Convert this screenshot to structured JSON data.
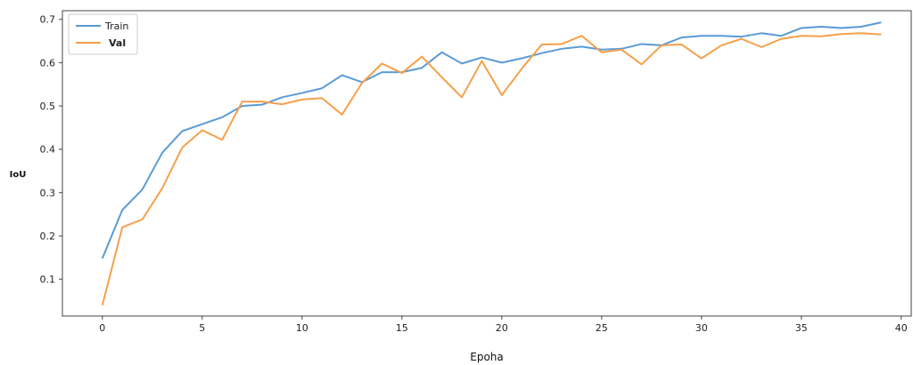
{
  "chart_data": {
    "type": "line",
    "title": "",
    "xlabel": "Epoha",
    "ylabel": "IoU",
    "xlim": [
      -2,
      40.5
    ],
    "ylim": [
      0.015,
      0.72
    ],
    "xticks": [
      0,
      5,
      10,
      15,
      20,
      25,
      30,
      35,
      40
    ],
    "yticks": [
      0.1,
      0.2,
      0.3,
      0.4,
      0.5,
      0.6,
      0.7
    ],
    "x": [
      0,
      1,
      2,
      3,
      4,
      5,
      6,
      7,
      8,
      9,
      10,
      11,
      12,
      13,
      14,
      15,
      16,
      17,
      18,
      19,
      20,
      21,
      22,
      23,
      24,
      25,
      26,
      27,
      28,
      29,
      30,
      31,
      32,
      33,
      34,
      35,
      36,
      37,
      38,
      39
    ],
    "series": [
      {
        "name": "Train",
        "color": "#5a9bd5",
        "values": [
          0.148,
          0.26,
          0.307,
          0.392,
          0.442,
          0.458,
          0.474,
          0.5,
          0.503,
          0.52,
          0.53,
          0.541,
          0.571,
          0.555,
          0.578,
          0.578,
          0.588,
          0.624,
          0.598,
          0.612,
          0.6,
          0.61,
          0.622,
          0.632,
          0.637,
          0.63,
          0.632,
          0.643,
          0.64,
          0.658,
          0.662,
          0.662,
          0.66,
          0.668,
          0.662,
          0.68,
          0.683,
          0.68,
          0.683,
          0.693
        ]
      },
      {
        "name": "Val",
        "color": "#f5a04b",
        "values": [
          0.04,
          0.22,
          0.238,
          0.31,
          0.404,
          0.444,
          0.422,
          0.51,
          0.51,
          0.504,
          0.515,
          0.518,
          0.48,
          0.553,
          0.598,
          0.576,
          0.614,
          0.566,
          0.52,
          0.604,
          0.525,
          0.586,
          0.642,
          0.643,
          0.662,
          0.624,
          0.63,
          0.596,
          0.64,
          0.642,
          0.61,
          0.64,
          0.655,
          0.636,
          0.655,
          0.662,
          0.661,
          0.666,
          0.668,
          0.665
        ]
      }
    ],
    "grid": false,
    "legend_position": "top-left"
  }
}
